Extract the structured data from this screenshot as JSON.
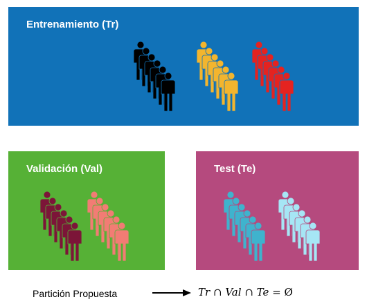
{
  "panels": [
    {
      "key": "train",
      "title": "Entrenamiento (Tr)",
      "background": "#1172b8",
      "groups": [
        {
          "color": "#000000"
        },
        {
          "color": "#f3b52e"
        },
        {
          "color": "#e42320"
        }
      ]
    },
    {
      "key": "val",
      "title": "Validación (Val)",
      "background": "#56b136",
      "groups": [
        {
          "color": "#7c1538"
        },
        {
          "color": "#f27c74"
        }
      ]
    },
    {
      "key": "test",
      "title": "Test (Te)",
      "background": "#b54a7e",
      "groups": [
        {
          "color": "#3fb3cd"
        },
        {
          "color": "#a6e6f5"
        }
      ]
    }
  ],
  "caption": "Partición Propuesta",
  "formula": {
    "tr": "Tr",
    "cap1": "∩",
    "val": "Val",
    "cap2": "∩",
    "te": "Te",
    "eq": "=",
    "empty": "Ø"
  }
}
